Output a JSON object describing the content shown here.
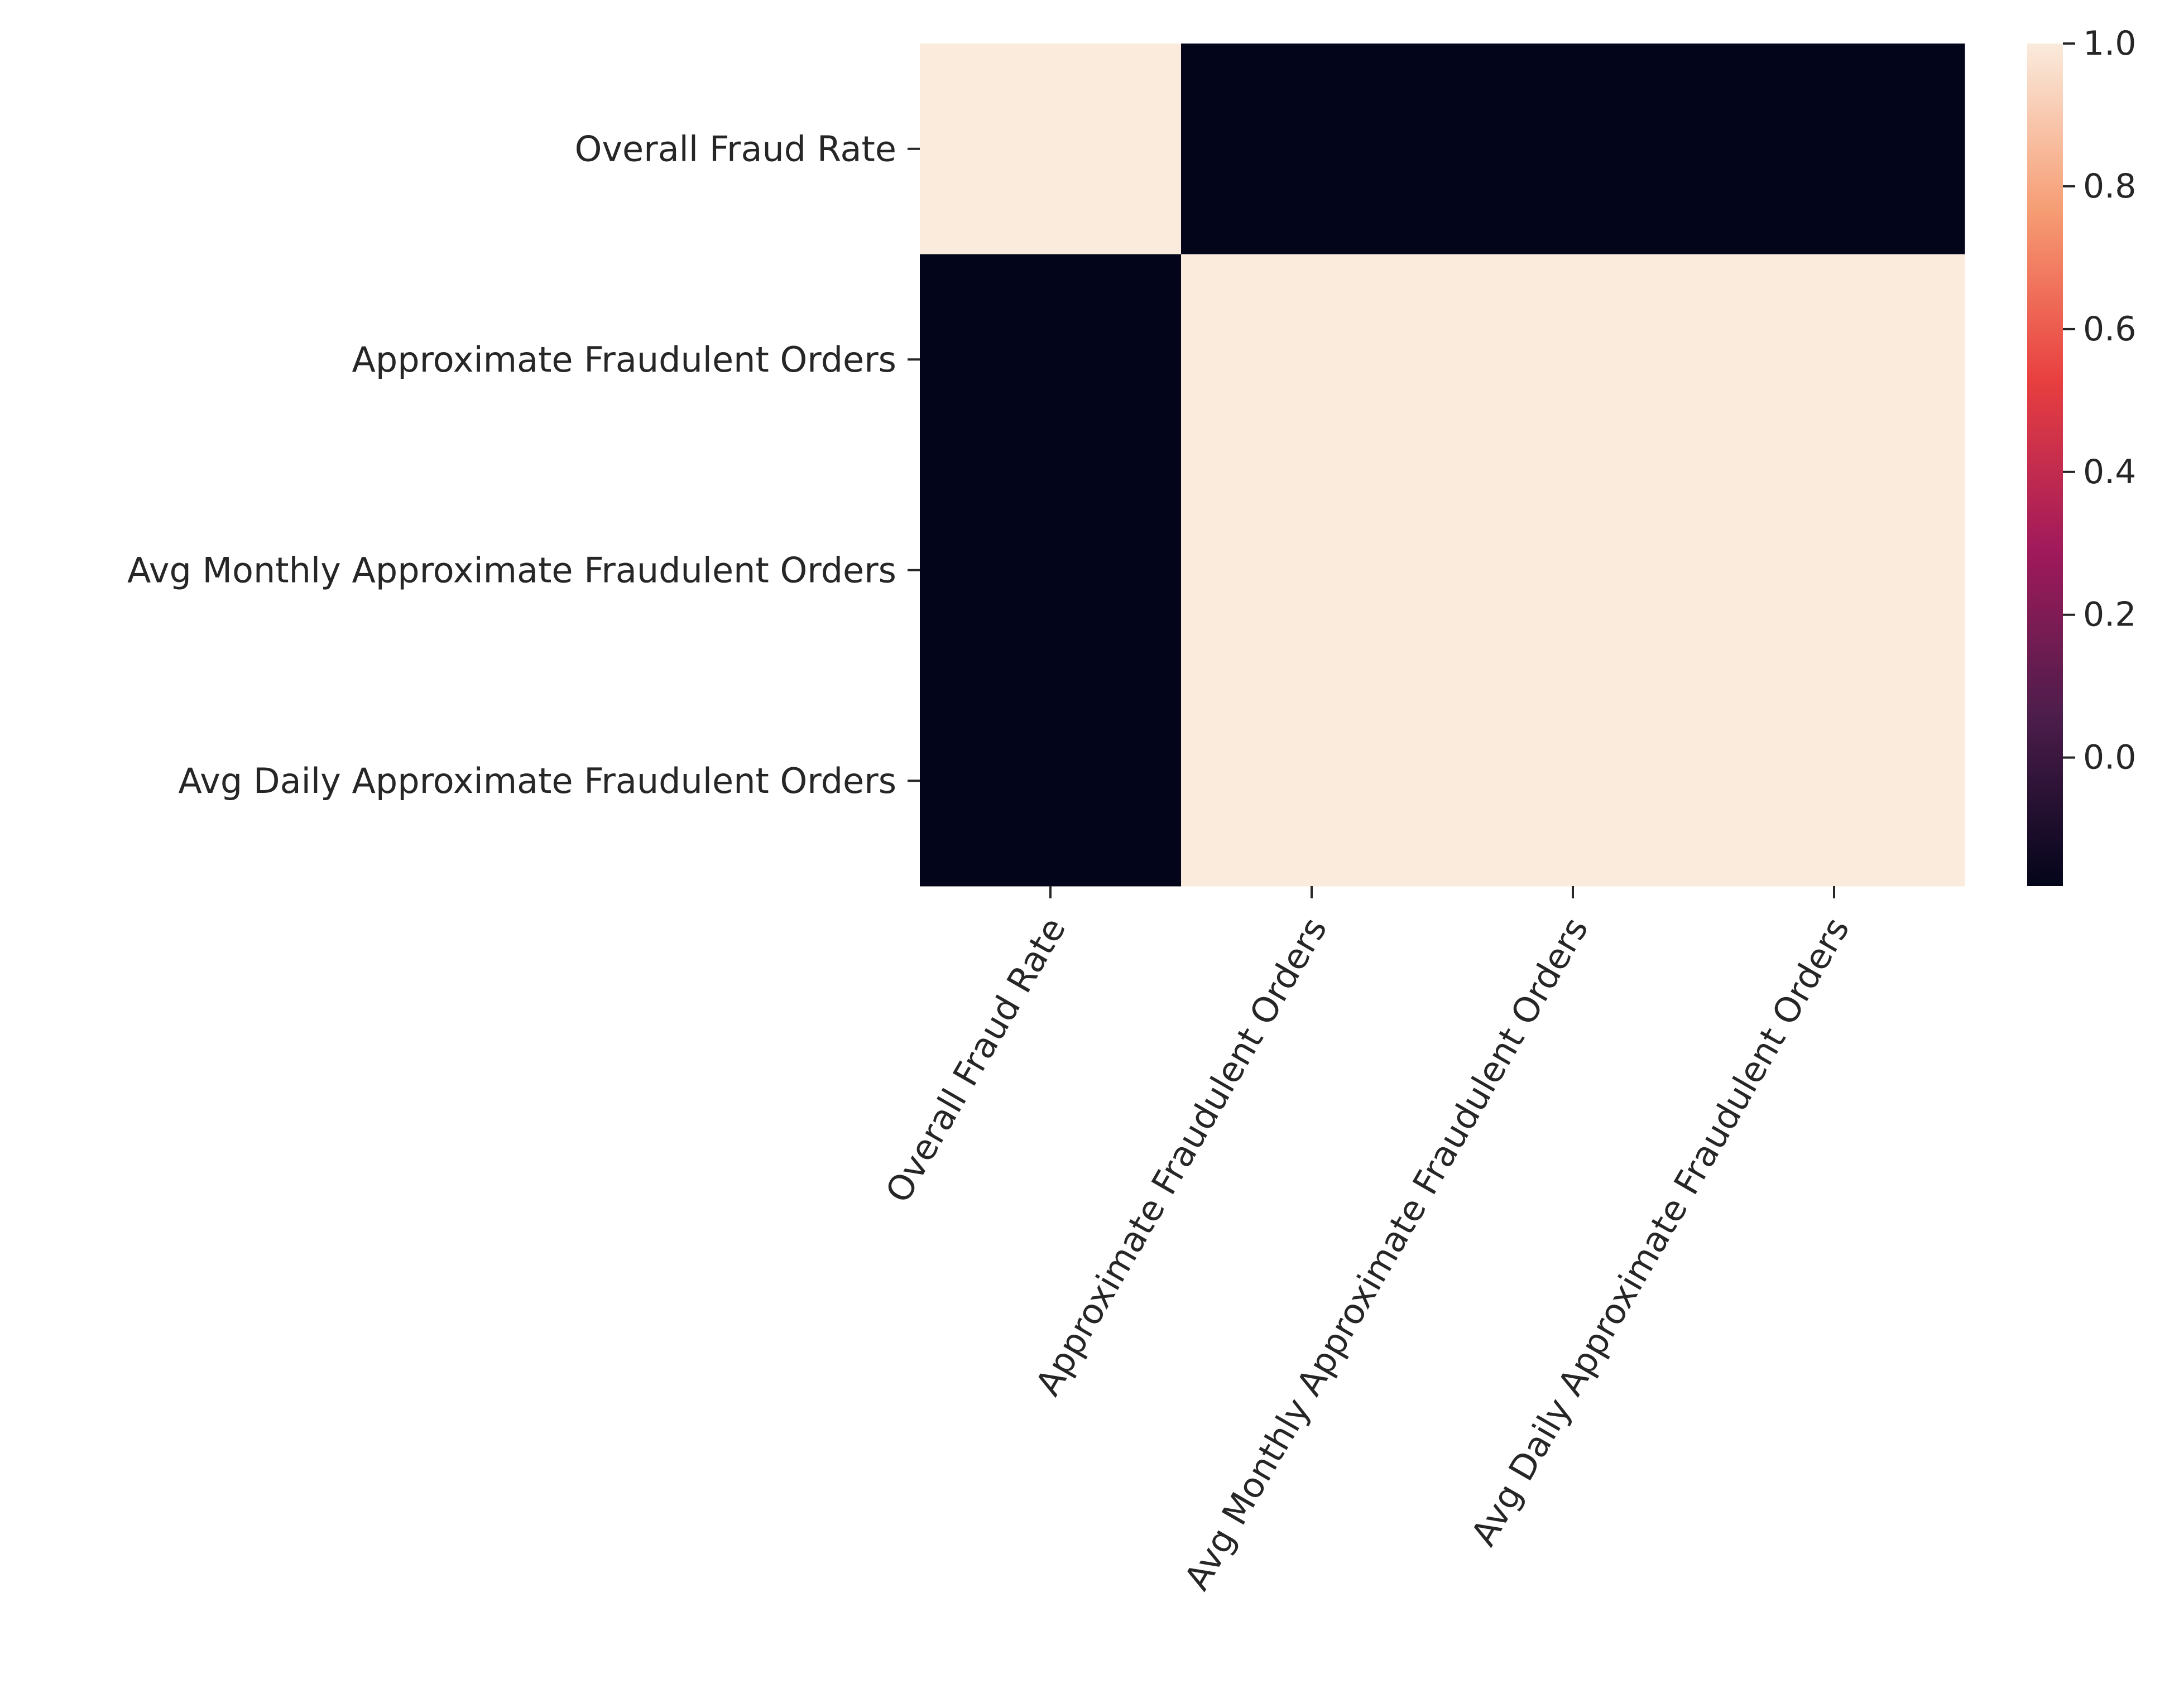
{
  "chart_data": {
    "type": "heatmap",
    "title": "",
    "xlabel": "",
    "ylabel": "",
    "rows": [
      "Overall Fraud Rate",
      "Approximate Fraudulent Orders",
      "Avg Monthly Approximate Fraudulent Orders",
      "Avg Daily Approximate Fraudulent Orders"
    ],
    "columns": [
      "Overall Fraud Rate",
      "Approximate Fraudulent Orders",
      "Avg Monthly Approximate Fraudulent Orders",
      "Avg Daily Approximate Fraudulent Orders"
    ],
    "values": [
      [
        1.0,
        -0.18,
        -0.18,
        -0.18
      ],
      [
        -0.18,
        1.0,
        1.0,
        1.0
      ],
      [
        -0.18,
        1.0,
        1.0,
        1.0
      ],
      [
        -0.18,
        1.0,
        1.0,
        1.0
      ]
    ],
    "colorbar": {
      "min": -0.18,
      "max": 1.0,
      "ticks": [
        0.0,
        0.2,
        0.4,
        0.6,
        0.8,
        1.0
      ],
      "tick_labels": [
        "0.0",
        "0.2",
        "0.4",
        "0.6",
        "0.8",
        "1.0"
      ],
      "colormap": "rocket",
      "stops": [
        "#03051a",
        "#4c1d4b",
        "#a11a5b",
        "#e83f3f",
        "#f69c73",
        "#faebdd"
      ]
    },
    "grid": false,
    "legend": "colorbar-right"
  }
}
